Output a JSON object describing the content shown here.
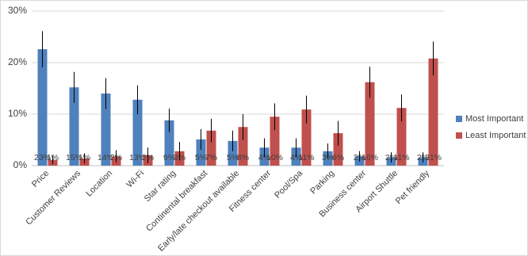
{
  "chart_data": {
    "type": "bar",
    "categories": [
      "Price",
      "Customer Reviews",
      "Location",
      "Wi-Fi",
      "Star rating",
      "Continental breakfast",
      "Early/late checkout available",
      "Fitness center",
      "Pool/Spa",
      "Parking",
      "Business center",
      "Airport Shuttle",
      "Pet friendly"
    ],
    "series": [
      {
        "name": "Most Important",
        "color": "#4f81bd",
        "values": [
          22.6,
          15.2,
          14.0,
          12.8,
          8.8,
          5.1,
          4.8,
          3.5,
          3.5,
          2.8,
          1.8,
          1.6,
          1.6
        ],
        "value_labels": [
          "23%",
          "15%",
          "14%",
          "13%",
          "9%",
          "5%",
          "5%",
          "4%",
          "4%",
          "3%",
          "2%",
          "2%",
          "2%"
        ],
        "errors": [
          3.5,
          3,
          3,
          2.8,
          2.3,
          2,
          2,
          1.8,
          1.8,
          1.5,
          1,
          1,
          1
        ]
      },
      {
        "name": "Least Important",
        "color": "#c0504d",
        "values": [
          1.1,
          1.4,
          1.8,
          2.0,
          2.8,
          6.8,
          7.5,
          9.5,
          10.9,
          6.3,
          16.2,
          11.2,
          20.8
        ],
        "value_labels": [
          "1%",
          "1%",
          "2%",
          "2%",
          "3%",
          "7%",
          "8%",
          "10%",
          "11%",
          "6%",
          "16%",
          "11%",
          "21%"
        ],
        "errors": [
          0.8,
          1,
          1.2,
          1.5,
          1.8,
          2.3,
          2.5,
          2.6,
          2.7,
          2.4,
          3,
          2.6,
          3.3
        ]
      }
    ],
    "ylim": [
      0,
      30
    ],
    "yticks": [
      {
        "value": 0,
        "label": "0%"
      },
      {
        "value": 10,
        "label": "10%"
      },
      {
        "value": 20,
        "label": "20%"
      },
      {
        "value": 30,
        "label": "30%"
      }
    ],
    "grid": true,
    "legend": "right"
  }
}
